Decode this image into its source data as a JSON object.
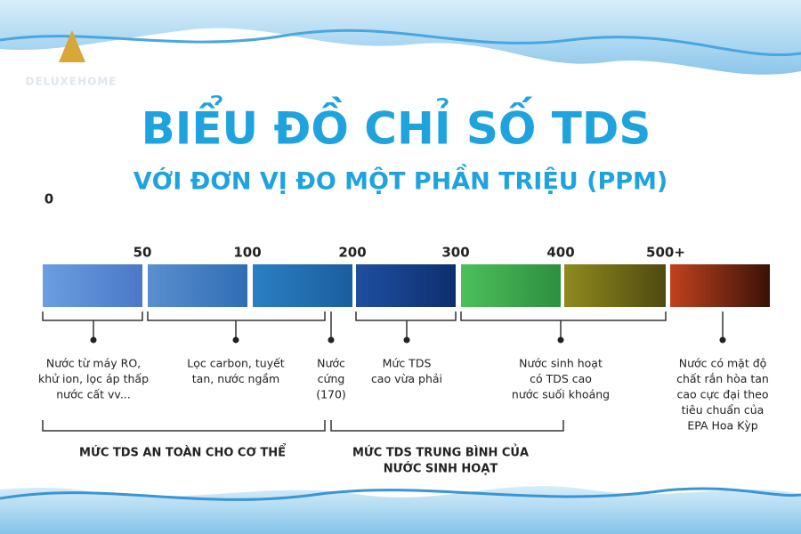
{
  "logo": "DELUXEHOME",
  "title": "BIỂU ĐỒ CHỈ SỐ TDS",
  "subtitle": "VỚI ĐƠN VỊ ĐO MỘT PHẦN TRIỆU (PPM)",
  "scale_labels": [
    "0",
    "50",
    "100",
    "200",
    "300",
    "400",
    "500+"
  ],
  "segments": [
    {
      "colors": [
        "#6a9ee0",
        "#4a78c8"
      ]
    },
    {
      "colors": [
        "#5a8fd0",
        "#2f6db3"
      ]
    },
    {
      "colors": [
        "#2b7fc4",
        "#1a5e9e"
      ]
    },
    {
      "colors": [
        "#1f4fa0",
        "#0d2f6e"
      ]
    },
    {
      "colors": [
        "#4cbf5a",
        "#2e8f40"
      ]
    },
    {
      "colors": [
        "#8f8a1e",
        "#4f4a10"
      ]
    },
    {
      "colors": [
        "#c0421e",
        "#3a1208"
      ]
    }
  ],
  "notes": [
    {
      "lines": [
        "Nước từ máy RO,",
        "khử ion, lọc áp thấp",
        "nước cất vv..."
      ]
    },
    {
      "lines": [
        "Lọc carbon, tuyết",
        "tan, nước ngầm"
      ]
    },
    {
      "lines": [
        "Nước",
        "cứng",
        "(170)"
      ]
    },
    {
      "lines": [
        "Mức TDS",
        "cao vừa phải"
      ]
    },
    {
      "lines": [
        "Nước sinh hoạt",
        "có TDS cao",
        "nước suối khoáng"
      ]
    },
    {
      "lines": [
        "Nước có mặt độ",
        "chất rắn hòa tan",
        "cao cực đại theo",
        "tiêu chuẩn của",
        "EPA Hoa Kỳp"
      ]
    }
  ],
  "groups": [
    {
      "lines": [
        "MỨC TDS AN TOÀN CHO CƠ THỂ"
      ]
    },
    {
      "lines": [
        "MỨC TDS TRUNG BÌNH CỦA",
        "NƯỚC SINH HOẠT"
      ]
    }
  ]
}
